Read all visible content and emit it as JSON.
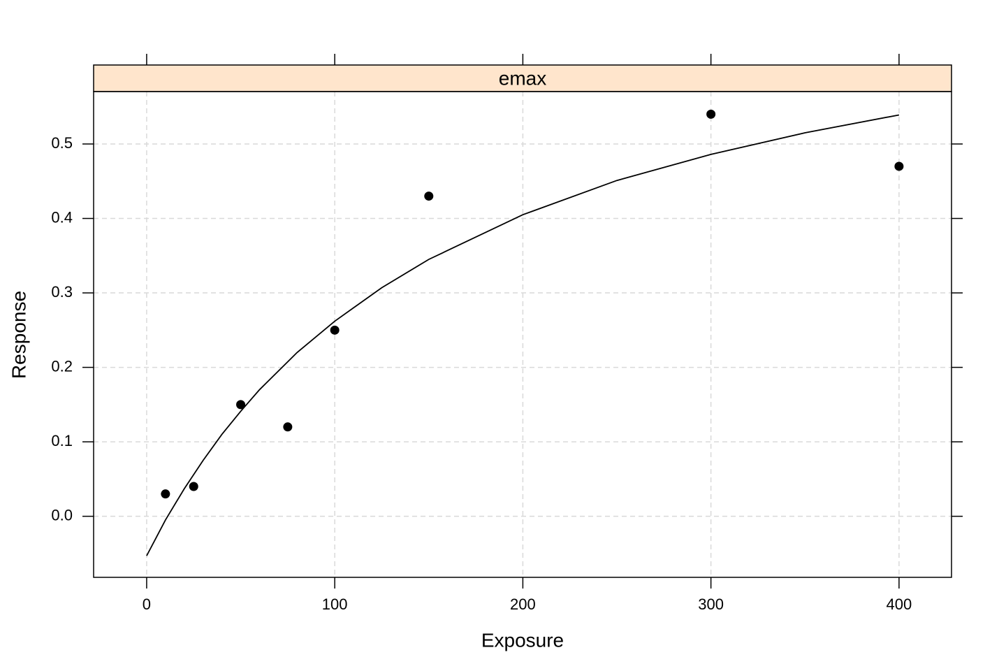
{
  "chart_data": {
    "type": "scatter",
    "strip": "emax",
    "strip_color": "#ffe5cc",
    "x_label": "Exposure",
    "y_label": "Response",
    "xlim": [
      -28.2,
      427.9
    ],
    "ylim": [
      -0.082,
      0.5704
    ],
    "xticks": [
      0,
      100,
      200,
      300,
      400
    ],
    "yticks": [
      {
        "value": 0,
        "label": "0.0"
      },
      0.1,
      0.2,
      0.3,
      0.4,
      0.5
    ],
    "grid": true,
    "series": [
      {
        "mode": "markers",
        "color": "#000000",
        "x": [
          10,
          25,
          50,
          75,
          100,
          150,
          300,
          400
        ],
        "y": [
          0.03,
          0.04,
          0.15,
          0.12,
          0.25,
          0.43,
          0.54,
          0.47
        ]
      },
      {
        "mode": "line",
        "color": "#000000",
        "x": [
          0,
          5,
          10,
          20,
          30,
          40,
          50,
          60,
          80,
          100,
          125,
          150,
          200,
          250,
          300,
          350,
          400
        ],
        "y": [
          -0.053,
          -0.029,
          -0.005,
          0.037,
          0.075,
          0.11,
          0.141,
          0.17,
          0.22,
          0.262,
          0.307,
          0.345,
          0.405,
          0.451,
          0.486,
          0.515,
          0.539
        ]
      }
    ]
  }
}
